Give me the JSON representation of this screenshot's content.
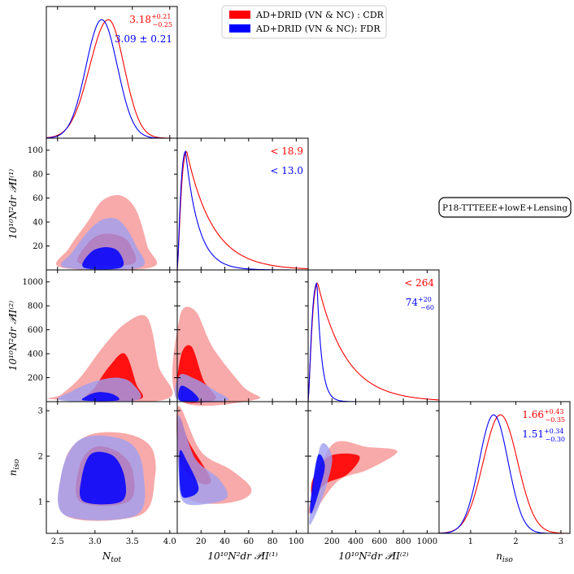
{
  "figure": {
    "dataset_label": "P18-TTTEEE+lowE+Lensing",
    "legend": [
      {
        "label": "AD+DRID (VN & NC) : CDR",
        "color": "#ff0000"
      },
      {
        "label": "AD+DRID (VN & NC): FDR",
        "color": "#0000ff"
      }
    ],
    "colors": {
      "cdr": "#ff0000",
      "cdr_light": "#f79a9a",
      "fdr": "#0000ff",
      "fdr_light": "#9f9ff0"
    }
  },
  "chart_data": {
    "type": "triangle-corner-plot",
    "series": [
      {
        "name": "AD+DRID (VN & NC) : CDR",
        "color": "#ff0000"
      },
      {
        "name": "AD+DRID (VN & NC): FDR",
        "color": "#0000ff"
      }
    ],
    "parameters": [
      {
        "name": "N_tot",
        "label": "N",
        "label_sub": "tot",
        "range": [
          2.35,
          4.1
        ],
        "ticks": [
          {
            "v": 2.5,
            "t": "2.5"
          },
          {
            "v": 3.0,
            "t": "3.0"
          },
          {
            "v": 3.5,
            "t": "3.5"
          },
          {
            "v": 4.0,
            "t": "4.0"
          }
        ]
      },
      {
        "name": "P_II_1",
        "label": "10¹⁰N²dr 𝒫II⁽¹⁾",
        "range": [
          0,
          110
        ],
        "ticks": [
          {
            "v": 20,
            "t": "20"
          },
          {
            "v": 40,
            "t": "40"
          },
          {
            "v": 60,
            "t": "60"
          },
          {
            "v": 80,
            "t": "80"
          },
          {
            "v": 100,
            "t": "100"
          }
        ]
      },
      {
        "name": "P_II_2",
        "label": "10¹⁰N²dr 𝒫II⁽²⁾",
        "range": [
          0,
          1100
        ],
        "ticks": [
          {
            "v": 200,
            "t": "200"
          },
          {
            "v": 400,
            "t": "400"
          },
          {
            "v": 600,
            "t": "600"
          },
          {
            "v": 800,
            "t": "800"
          },
          {
            "v": 1000,
            "t": "1000"
          }
        ]
      },
      {
        "name": "n_iso",
        "label": "n",
        "label_sub": "iso",
        "range": [
          0.3,
          3.2
        ],
        "ticks": [
          {
            "v": 1,
            "t": "1"
          },
          {
            "v": 2,
            "t": "2"
          },
          {
            "v": 3,
            "t": "3"
          }
        ]
      }
    ],
    "marginals": [
      {
        "param": "N_tot",
        "cdr": {
          "peak": 3.18,
          "sigma": 0.23,
          "sigma_lo": 0.25,
          "sigma_hi": 0.21
        },
        "fdr": {
          "peak": 3.09,
          "sigma": 0.21
        },
        "cdr_text": {
          "main": "3.18",
          "sup": "+0.21",
          "sub": "−0.25"
        },
        "fdr_text": {
          "main": "3.09 ± 0.21"
        }
      },
      {
        "param": "P_II_1",
        "cdr": {
          "peak": 8,
          "shape": "skewed",
          "tail": 22
        },
        "fdr": {
          "peak": 7,
          "shape": "skewed",
          "tail": 11
        },
        "cdr_text": {
          "main": "< 18.9"
        },
        "fdr_text": {
          "main": "< 13.0"
        }
      },
      {
        "param": "P_II_2",
        "cdr": {
          "peak": 80,
          "shape": "skewed",
          "tail": 240
        },
        "fdr": {
          "peak": 74,
          "shape": "skewed",
          "tail": 40
        },
        "cdr_text": {
          "main": "< 264"
        },
        "fdr_text": {
          "main": "74",
          "sup": "+20",
          "sub": "−60"
        }
      },
      {
        "param": "n_iso",
        "cdr": {
          "peak": 1.66,
          "sigma": 0.38
        },
        "fdr": {
          "peak": 1.51,
          "sigma": 0.32
        },
        "cdr_text": {
          "main": "1.66",
          "sup": "+0.43",
          "sub": "−0.35"
        },
        "fdr_text": {
          "main": "1.51",
          "sup": "+0.34",
          "sub": "−0.30"
        }
      }
    ],
    "joint_contours": [
      {
        "x": "N_tot",
        "y": "P_II_1",
        "cdr": {
          "inner": [
            [
              2.8,
              5
            ],
            [
              3.5,
              5
            ],
            [
              3.48,
              20
            ],
            [
              3.35,
              28
            ],
            [
              3.1,
              30
            ],
            [
              2.9,
              22
            ]
          ],
          "outer": [
            [
              2.55,
              2
            ],
            [
              3.75,
              2
            ],
            [
              3.7,
              20
            ],
            [
              3.55,
              50
            ],
            [
              3.35,
              62
            ],
            [
              3.1,
              58
            ],
            [
              2.9,
              40
            ],
            [
              2.65,
              18
            ]
          ]
        },
        "fdr": {
          "inner": [
            [
              2.85,
              2
            ],
            [
              3.35,
              2
            ],
            [
              3.32,
              15
            ],
            [
              3.15,
              19
            ],
            [
              2.95,
              15
            ]
          ],
          "outer": [
            [
              2.6,
              2
            ],
            [
              3.6,
              2
            ],
            [
              3.55,
              20
            ],
            [
              3.35,
              40
            ],
            [
              3.15,
              43
            ],
            [
              2.95,
              35
            ],
            [
              2.7,
              15
            ]
          ]
        }
      },
      {
        "x": "N_tot",
        "y": "P_II_2",
        "cdr": {
          "inner": [
            [
              2.9,
              20
            ],
            [
              3.6,
              20
            ],
            [
              3.55,
              150
            ],
            [
              3.4,
              400
            ],
            [
              3.2,
              300
            ],
            [
              3.0,
              120
            ]
          ],
          "outer": [
            [
              2.45,
              20
            ],
            [
              3.95,
              20
            ],
            [
              3.85,
              300
            ],
            [
              3.7,
              700
            ],
            [
              3.4,
              650
            ],
            [
              3.1,
              450
            ],
            [
              2.8,
              200
            ],
            [
              2.55,
              60
            ]
          ]
        },
        "fdr": {
          "inner": [
            [
              2.85,
              10
            ],
            [
              3.3,
              10
            ],
            [
              3.25,
              60
            ],
            [
              3.05,
              80
            ],
            [
              2.9,
              50
            ]
          ],
          "outer": [
            [
              2.55,
              10
            ],
            [
              3.55,
              10
            ],
            [
              3.5,
              150
            ],
            [
              3.3,
              200
            ],
            [
              3.0,
              170
            ],
            [
              2.7,
              90
            ]
          ]
        }
      },
      {
        "x": "P_II_1",
        "y": "P_II_2",
        "cdr": {
          "inner": [
            [
              2,
              20
            ],
            [
              32,
              20
            ],
            [
              22,
              180
            ],
            [
              12,
              460
            ],
            [
              3,
              380
            ]
          ],
          "outer": [
            [
              1,
              20
            ],
            [
              67,
              20
            ],
            [
              55,
              130
            ],
            [
              30,
              450
            ],
            [
              15,
              760
            ],
            [
              2,
              700
            ]
          ]
        },
        "fdr": {
          "inner": [
            [
              2,
              10
            ],
            [
              18,
              10
            ],
            [
              12,
              90
            ],
            [
              3,
              130
            ]
          ],
          "outer": [
            [
              1,
              10
            ],
            [
              42,
              10
            ],
            [
              32,
              90
            ],
            [
              15,
              190
            ],
            [
              2,
              220
            ]
          ]
        }
      },
      {
        "x": "N_tot",
        "y": "n_iso",
        "cdr": {
          "inner": [
            [
              2.8,
              1.0
            ],
            [
              3.45,
              1.0
            ],
            [
              3.5,
              1.7
            ],
            [
              3.3,
              2.1
            ],
            [
              3.0,
              2.2
            ],
            [
              2.8,
              1.8
            ]
          ],
          "outer": [
            [
              2.6,
              0.7
            ],
            [
              3.6,
              0.7
            ],
            [
              3.8,
              1.5
            ],
            [
              3.75,
              2.2
            ],
            [
              3.4,
              2.5
            ],
            [
              2.9,
              2.45
            ],
            [
              2.6,
              1.9
            ]
          ]
        },
        "fdr": {
          "inner": [
            [
              2.85,
              1.0
            ],
            [
              3.35,
              1.0
            ],
            [
              3.4,
              1.5
            ],
            [
              3.25,
              2.0
            ],
            [
              2.95,
              2.05
            ],
            [
              2.82,
              1.5
            ]
          ],
          "outer": [
            [
              2.6,
              0.7
            ],
            [
              3.55,
              0.7
            ],
            [
              3.65,
              1.6
            ],
            [
              3.5,
              2.25
            ],
            [
              3.1,
              2.45
            ],
            [
              2.75,
              2.3
            ],
            [
              2.55,
              1.6
            ]
          ]
        }
      },
      {
        "x": "P_II_1",
        "y": "n_iso",
        "cdr": {
          "inner": [
            [
              2,
              2.85
            ],
            [
              10,
              2.3
            ],
            [
              28,
              1.5
            ],
            [
              20,
              1.4
            ],
            [
              5,
              1.7
            ],
            [
              1,
              2.1
            ]
          ],
          "outer": [
            [
              1,
              3.1
            ],
            [
              20,
              2.1
            ],
            [
              45,
              1.7
            ],
            [
              62,
              1.3
            ],
            [
              55,
              1.05
            ],
            [
              30,
              0.95
            ],
            [
              8,
              1.1
            ],
            [
              1,
              1.8
            ]
          ]
        },
        "fdr": {
          "inner": [
            [
              2,
              2.1
            ],
            [
              8,
              1.9
            ],
            [
              18,
              1.3
            ],
            [
              10,
              1.1
            ],
            [
              3,
              1.2
            ]
          ],
          "outer": [
            [
              1,
              2.9
            ],
            [
              15,
              1.95
            ],
            [
              35,
              1.5
            ],
            [
              42,
              1.1
            ],
            [
              25,
              0.95
            ],
            [
              5,
              1.0
            ],
            [
              1,
              1.7
            ]
          ]
        }
      },
      {
        "x": "P_II_2",
        "y": "n_iso",
        "cdr": {
          "inner": [
            [
              40,
              1.5
            ],
            [
              180,
              2.0
            ],
            [
              430,
              2.0
            ],
            [
              330,
              1.6
            ],
            [
              150,
              1.4
            ],
            [
              40,
              1.1
            ]
          ],
          "outer": [
            [
              20,
              1.0
            ],
            [
              200,
              2.25
            ],
            [
              500,
              2.2
            ],
            [
              750,
              2.1
            ],
            [
              500,
              1.7
            ],
            [
              250,
              1.45
            ],
            [
              40,
              0.75
            ]
          ]
        },
        "fdr": {
          "inner": [
            [
              20,
              1.0
            ],
            [
              80,
              2.0
            ],
            [
              140,
              1.8
            ],
            [
              100,
              1.3
            ],
            [
              30,
              0.75
            ]
          ],
          "outer": [
            [
              10,
              0.6
            ],
            [
              100,
              2.2
            ],
            [
              200,
              2.0
            ],
            [
              160,
              1.4
            ],
            [
              60,
              0.7
            ]
          ]
        }
      }
    ]
  }
}
